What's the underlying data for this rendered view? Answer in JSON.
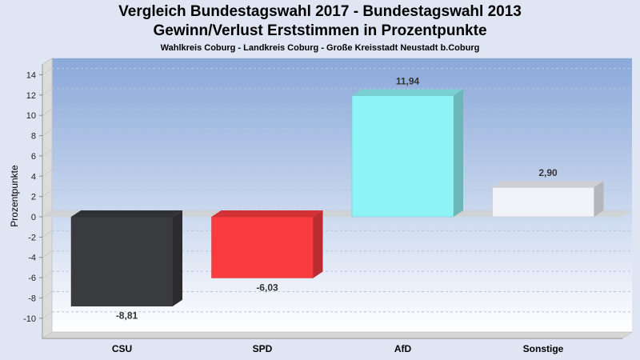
{
  "chart_data": {
    "type": "bar",
    "title": "Vergleich Bundestagswahl 2017 - Bundestagswahl 2013",
    "title2": "Gewinn/Verlust Erststimmen in Prozentpunkte",
    "subtitle": "Wahlkreis Coburg - Landkreis Coburg - Große Kreisstadt Neustadt b.Coburg",
    "xlabel": "",
    "ylabel": "Prozentpunkte",
    "categories": [
      "CSU",
      "SPD",
      "AfD",
      "Sonstige"
    ],
    "values": [
      -8.81,
      -6.03,
      11.94,
      2.9
    ],
    "value_labels": [
      "-8,81",
      "-6,03",
      "11,94",
      "2,90"
    ],
    "colors": [
      "#3a3b3f",
      "#f73b3e",
      "#8ef3f7",
      "#f1f3f9"
    ],
    "ylim": [
      -12,
      15
    ],
    "yticks": [
      -10,
      -8,
      -6,
      -4,
      -2,
      0,
      2,
      4,
      6,
      8,
      10,
      12,
      14
    ],
    "grid": true,
    "legend": "none"
  }
}
